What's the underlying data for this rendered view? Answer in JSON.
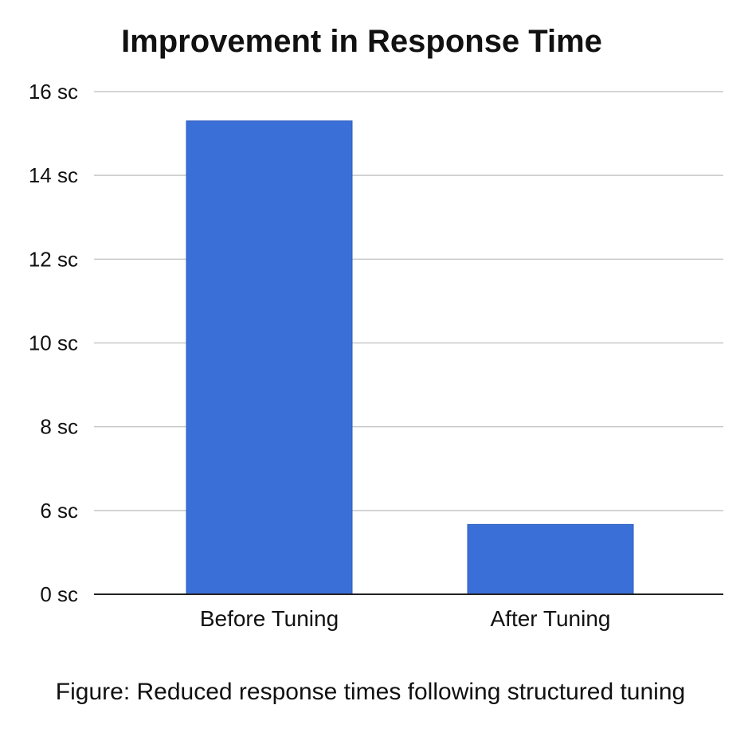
{
  "chart_data": {
    "type": "bar",
    "title": "Improvement in Response Time",
    "caption": "Figure: Reduced response times following structured tuning",
    "categories": [
      "Before Tuning",
      "After Tuning"
    ],
    "values": [
      15.3,
      5.0
    ],
    "ytick_values": [
      0,
      6,
      8,
      10,
      12,
      14,
      16
    ],
    "ytick_labels": [
      "0 sc",
      "6 sc",
      "8 sc",
      "10 sc",
      "12 sc",
      "14 sc",
      "16 sc"
    ],
    "grid": true,
    "colors": {
      "bar": "#3b6fd8",
      "bar_edge": "#2c5bbf",
      "grid": "#c8c8c8",
      "axis": "#222222"
    }
  }
}
